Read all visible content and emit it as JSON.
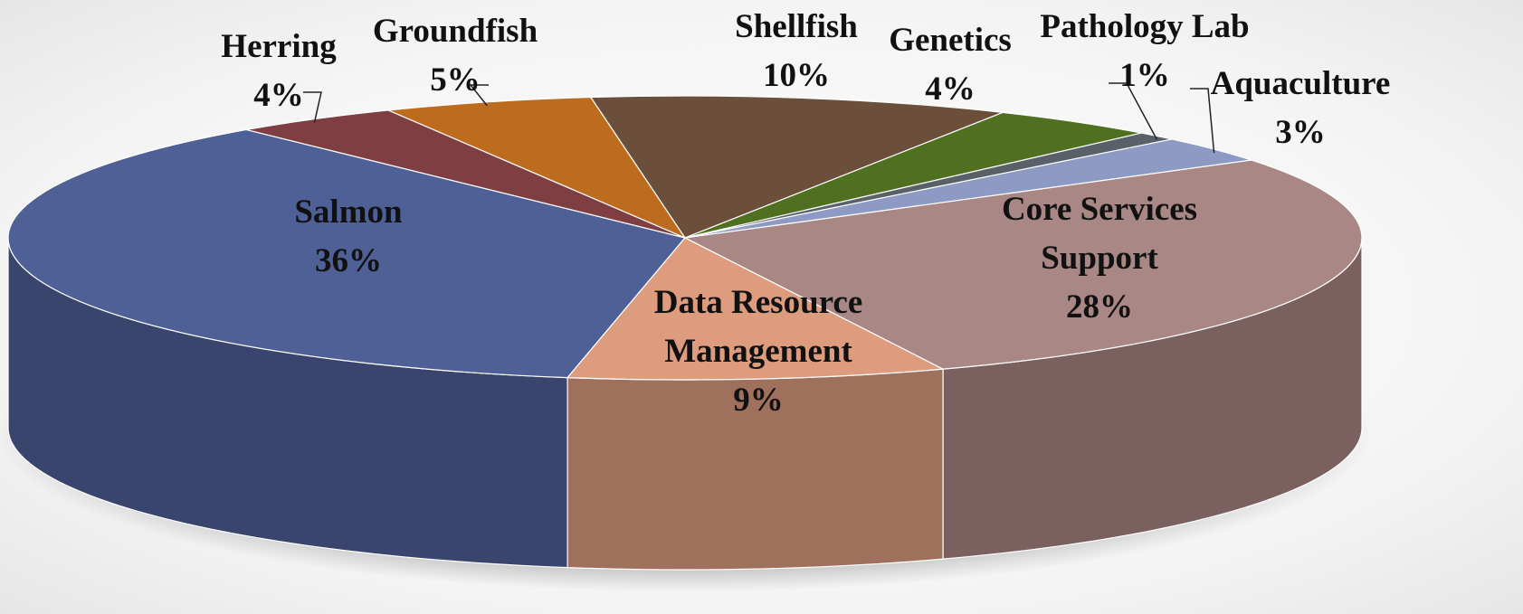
{
  "chart_data": {
    "type": "pie3d",
    "categories": [
      "Salmon",
      "Herring",
      "Groundfish",
      "Shellfish",
      "Genetics",
      "Pathology Lab",
      "Aquaculture",
      "Core Services Support",
      "Data Resource Management"
    ],
    "values": [
      36,
      4,
      5,
      10,
      4,
      1,
      3,
      28,
      9
    ],
    "value_labels": [
      "36%",
      "4%",
      "5%",
      "10%",
      "4%",
      "1%",
      "3%",
      "28%",
      "9%"
    ],
    "colors": [
      "#4f6096",
      "#7f3f42",
      "#bd6b1c",
      "#6b4f3a",
      "#4f7020",
      "#5a6068",
      "#8d9bc4",
      "#a98785",
      "#dd9c7e"
    ]
  }
}
